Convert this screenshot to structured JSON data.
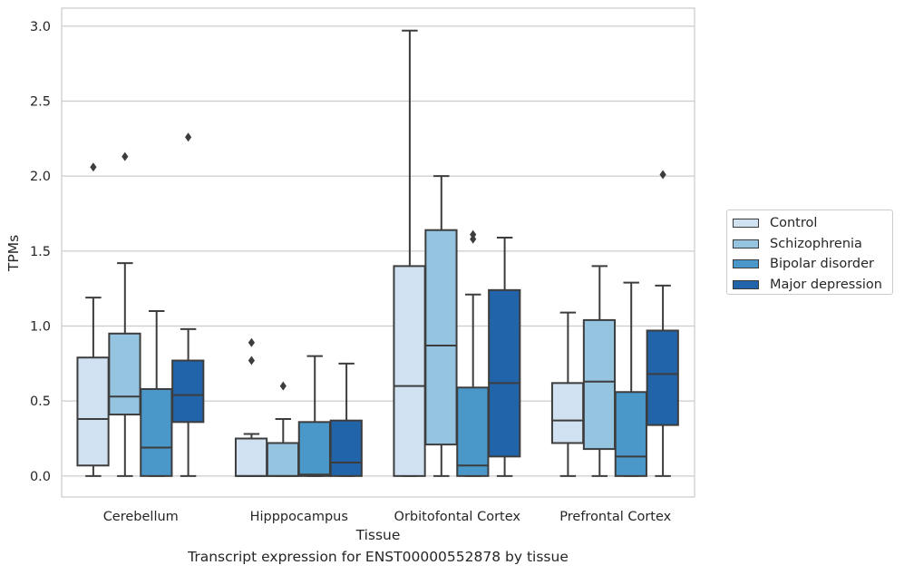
{
  "chart_data": {
    "type": "box",
    "title": "",
    "caption": "Transcript expression for ENST00000552878 by tissue",
    "xlabel": "Tissue",
    "ylabel": "TPMs",
    "ylim": [
      -0.14,
      3.12
    ],
    "yticks": [
      "0.0",
      "0.5",
      "1.0",
      "1.5",
      "2.0",
      "2.5",
      "3.0"
    ],
    "grid": true,
    "legend_position": "outside-right",
    "categories": [
      "Cerebellum",
      "Hipppocampus",
      "Orbitofontal Cortex",
      "Prefrontal Cortex"
    ],
    "series": [
      {
        "name": "Control",
        "color": "#d0e1f2",
        "boxes": [
          {
            "whislo": 0.0,
            "q1": 0.07,
            "med": 0.38,
            "q3": 0.79,
            "whishi": 1.19,
            "fliers": [
              2.06
            ]
          },
          {
            "whislo": 0.0,
            "q1": 0.0,
            "med": 0.0,
            "q3": 0.25,
            "whishi": 0.28,
            "fliers": [
              0.77,
              0.89
            ]
          },
          {
            "whislo": 0.0,
            "q1": 0.0,
            "med": 0.6,
            "q3": 1.4,
            "whishi": 2.97,
            "fliers": []
          },
          {
            "whislo": 0.0,
            "q1": 0.22,
            "med": 0.37,
            "q3": 0.62,
            "whishi": 1.09,
            "fliers": []
          }
        ]
      },
      {
        "name": "Schizophrenia",
        "color": "#94c4df",
        "boxes": [
          {
            "whislo": 0.0,
            "q1": 0.41,
            "med": 0.53,
            "q3": 0.95,
            "whishi": 1.42,
            "fliers": [
              2.13
            ]
          },
          {
            "whislo": 0.0,
            "q1": 0.0,
            "med": 0.0,
            "q3": 0.22,
            "whishi": 0.38,
            "fliers": [
              0.6
            ]
          },
          {
            "whislo": 0.0,
            "q1": 0.21,
            "med": 0.87,
            "q3": 1.64,
            "whishi": 2.0,
            "fliers": []
          },
          {
            "whislo": 0.0,
            "q1": 0.18,
            "med": 0.63,
            "q3": 1.04,
            "whishi": 1.4,
            "fliers": []
          }
        ]
      },
      {
        "name": "Bipolar disorder",
        "color": "#4a98c9",
        "boxes": [
          {
            "whislo": 0.0,
            "q1": 0.0,
            "med": 0.19,
            "q3": 0.58,
            "whishi": 1.1,
            "fliers": []
          },
          {
            "whislo": 0.0,
            "q1": 0.0,
            "med": 0.01,
            "q3": 0.36,
            "whishi": 0.8,
            "fliers": []
          },
          {
            "whislo": 0.0,
            "q1": 0.0,
            "med": 0.07,
            "q3": 0.59,
            "whishi": 1.21,
            "fliers": [
              1.58,
              1.61
            ]
          },
          {
            "whislo": 0.0,
            "q1": 0.0,
            "med": 0.13,
            "q3": 0.56,
            "whishi": 1.29,
            "fliers": []
          }
        ]
      },
      {
        "name": "Major depression",
        "color": "#2264aa",
        "boxes": [
          {
            "whislo": 0.0,
            "q1": 0.36,
            "med": 0.54,
            "q3": 0.77,
            "whishi": 0.98,
            "fliers": [
              2.26
            ]
          },
          {
            "whislo": 0.0,
            "q1": 0.0,
            "med": 0.09,
            "q3": 0.37,
            "whishi": 0.75,
            "fliers": []
          },
          {
            "whislo": 0.0,
            "q1": 0.13,
            "med": 0.62,
            "q3": 1.24,
            "whishi": 1.59,
            "fliers": []
          },
          {
            "whislo": 0.0,
            "q1": 0.34,
            "med": 0.68,
            "q3": 0.97,
            "whishi": 1.27,
            "fliers": [
              2.01
            ]
          }
        ]
      }
    ]
  }
}
